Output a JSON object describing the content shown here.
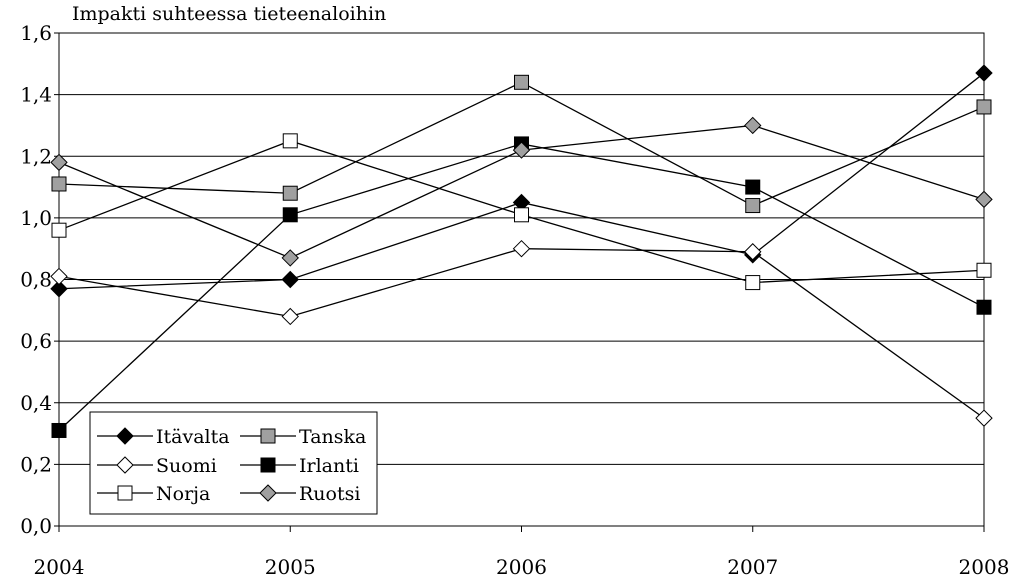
{
  "chart_data": {
    "type": "line",
    "title": "Impakti suhteessa tieteenaloihin",
    "xlabel": "",
    "ylabel": "",
    "x": [
      "2004",
      "2005",
      "2006",
      "2007",
      "2008"
    ],
    "ylim": [
      0,
      1.6
    ],
    "yticks": [
      "0,0",
      "0,2",
      "0,4",
      "0,6",
      "0,8",
      "1,0",
      "1,2",
      "1,4",
      "1,6"
    ],
    "grid": true,
    "legend_position": "bottom-left",
    "series": [
      {
        "name": "Itävalta",
        "marker": "diamond",
        "fill": "#000000",
        "values": [
          0.77,
          0.8,
          1.05,
          0.88,
          1.47
        ]
      },
      {
        "name": "Tanska",
        "marker": "square",
        "fill": "#a0a0a0",
        "values": [
          1.11,
          1.08,
          1.44,
          1.04,
          1.36
        ]
      },
      {
        "name": "Suomi",
        "marker": "diamond",
        "fill": "#ffffff",
        "values": [
          0.81,
          0.68,
          0.9,
          0.89,
          0.35
        ]
      },
      {
        "name": "Irlanti",
        "marker": "square",
        "fill": "#000000",
        "values": [
          0.31,
          1.01,
          1.24,
          1.1,
          0.71
        ]
      },
      {
        "name": "Norja",
        "marker": "square",
        "fill": "#ffffff",
        "values": [
          0.96,
          1.25,
          1.01,
          0.79,
          0.83
        ]
      },
      {
        "name": "Ruotsi",
        "marker": "diamond",
        "fill": "#a0a0a0",
        "values": [
          1.18,
          0.87,
          1.22,
          1.3,
          1.06
        ]
      }
    ]
  }
}
